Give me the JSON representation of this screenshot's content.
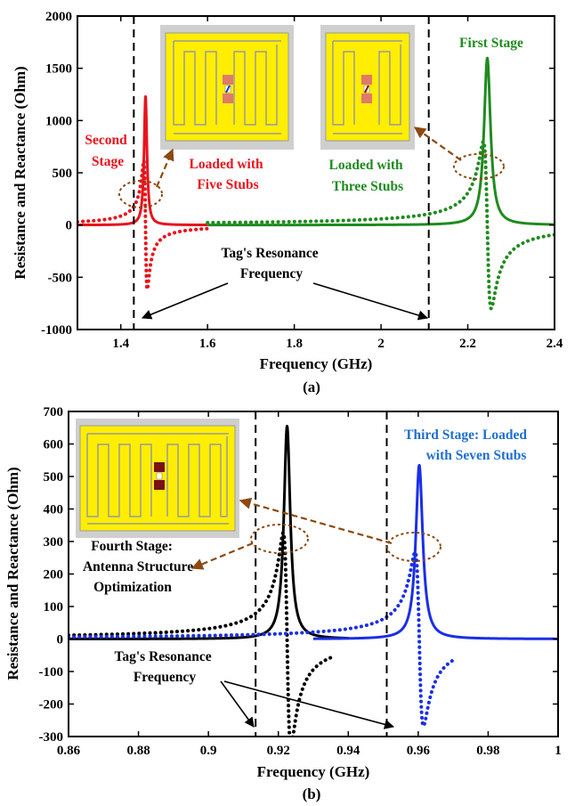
{
  "chart_data": [
    {
      "type": "line",
      "panel_label": "(a)",
      "xlabel": "Frequency (GHz)",
      "ylabel": "Resistance and Reactance (Ohm)",
      "xlim": [
        1.3,
        2.4
      ],
      "ylim": [
        -1000,
        2000
      ],
      "xticks": [
        1.4,
        1.6,
        1.8,
        2,
        2.2,
        2.4
      ],
      "xtick_labels": [
        "1.4",
        "1.6",
        "1.8",
        "2",
        "2.2",
        "2.4"
      ],
      "yticks": [
        -1000,
        -500,
        0,
        500,
        1000,
        1500,
        2000
      ],
      "ytick_labels": [
        "-1000",
        "-500",
        "0",
        "500",
        "1000",
        "1500",
        "2000"
      ],
      "grid": false,
      "vlines": [
        1.43,
        2.11
      ],
      "series": [
        {
          "stage": "Second Stage",
          "kind": "resistance",
          "color": "#e8141c",
          "style": "solid",
          "f0": 1.457,
          "peak": 1230,
          "gamma": 0.004,
          "xrange": [
            1.3,
            1.6
          ]
        },
        {
          "stage": "Second Stage",
          "kind": "reactance",
          "color": "#e8141c",
          "style": "dotted",
          "f0": 1.457,
          "peak": 1230,
          "gamma": 0.004,
          "xrange": [
            1.3,
            1.6
          ]
        },
        {
          "stage": "First Stage",
          "kind": "resistance",
          "color": "#1f8b1f",
          "style": "solid",
          "f0": 2.245,
          "peak": 1600,
          "gamma": 0.009,
          "xrange": [
            1.6,
            2.4
          ]
        },
        {
          "stage": "First Stage",
          "kind": "reactance",
          "color": "#1f8b1f",
          "style": "dotted",
          "f0": 2.245,
          "peak": 1600,
          "gamma": 0.009,
          "xrange": [
            1.6,
            2.4
          ]
        }
      ],
      "annotations": [
        {
          "text": [
            "Second",
            "Stage"
          ],
          "color": "#e8141c"
        },
        {
          "text": [
            "Loaded with",
            "Five Stubs"
          ],
          "color": "#e8141c"
        },
        {
          "text": [
            "Loaded with",
            "Three Stubs"
          ],
          "color": "#1f8b1f"
        },
        {
          "text": [
            "First Stage"
          ],
          "color": "#1f8b1f"
        },
        {
          "text": [
            "Tag's Resonance",
            "Frequency"
          ],
          "color": "#000000"
        }
      ]
    },
    {
      "type": "line",
      "panel_label": "(b)",
      "xlabel": "Frequency (GHz)",
      "ylabel": "Resistance and Reactance (Ohm)",
      "xlim": [
        0.86,
        1.0
      ],
      "ylim": [
        -300,
        700
      ],
      "xticks": [
        0.86,
        0.88,
        0.9,
        0.92,
        0.94,
        0.96,
        0.98,
        1.0
      ],
      "xtick_labels": [
        "0.86",
        "0.88",
        "0.9",
        "0.92",
        "0.94",
        "0.96",
        "0.98",
        "1"
      ],
      "yticks": [
        -300,
        -200,
        -100,
        0,
        100,
        200,
        300,
        400,
        500,
        600,
        700
      ],
      "ytick_labels": [
        "-300",
        "-200",
        "-100",
        "0",
        "100",
        "200",
        "300",
        "400",
        "500",
        "600",
        "700"
      ],
      "grid": false,
      "vlines": [
        0.9135,
        0.951
      ],
      "series": [
        {
          "stage": "Fourth Stage",
          "kind": "resistance",
          "color": "#000000",
          "style": "solid",
          "f0": 0.9225,
          "peak": 655,
          "gamma": 0.0011,
          "xrange": [
            0.86,
            0.94
          ]
        },
        {
          "stage": "Fourth Stage",
          "kind": "reactance",
          "color": "#000000",
          "style": "dotted",
          "f0": 0.9225,
          "peak": 655,
          "gamma": 0.0011,
          "xrange": [
            0.86,
            0.935
          ]
        },
        {
          "stage": "Third Stage",
          "kind": "resistance",
          "color": "#1a2fe6",
          "style": "solid",
          "f0": 0.9603,
          "peak": 535,
          "gamma": 0.0012,
          "xrange": [
            0.93,
            1.0
          ]
        },
        {
          "stage": "Third Stage",
          "kind": "reactance",
          "color": "#1a2fe6",
          "style": "dotted",
          "f0": 0.9603,
          "peak": 535,
          "gamma": 0.0012,
          "xrange": [
            0.86,
            0.97
          ]
        }
      ],
      "annotations": [
        {
          "text": [
            "Third Stage: Loaded",
            "with Seven Stubs"
          ],
          "color": "#1f6fd0"
        },
        {
          "text": [
            "Fourth Stage:",
            "Antenna Structure",
            "Optimization"
          ],
          "color": "#000000"
        },
        {
          "text": [
            "Tag's Resonance",
            "Frequency"
          ],
          "color": "#000000"
        }
      ]
    }
  ]
}
